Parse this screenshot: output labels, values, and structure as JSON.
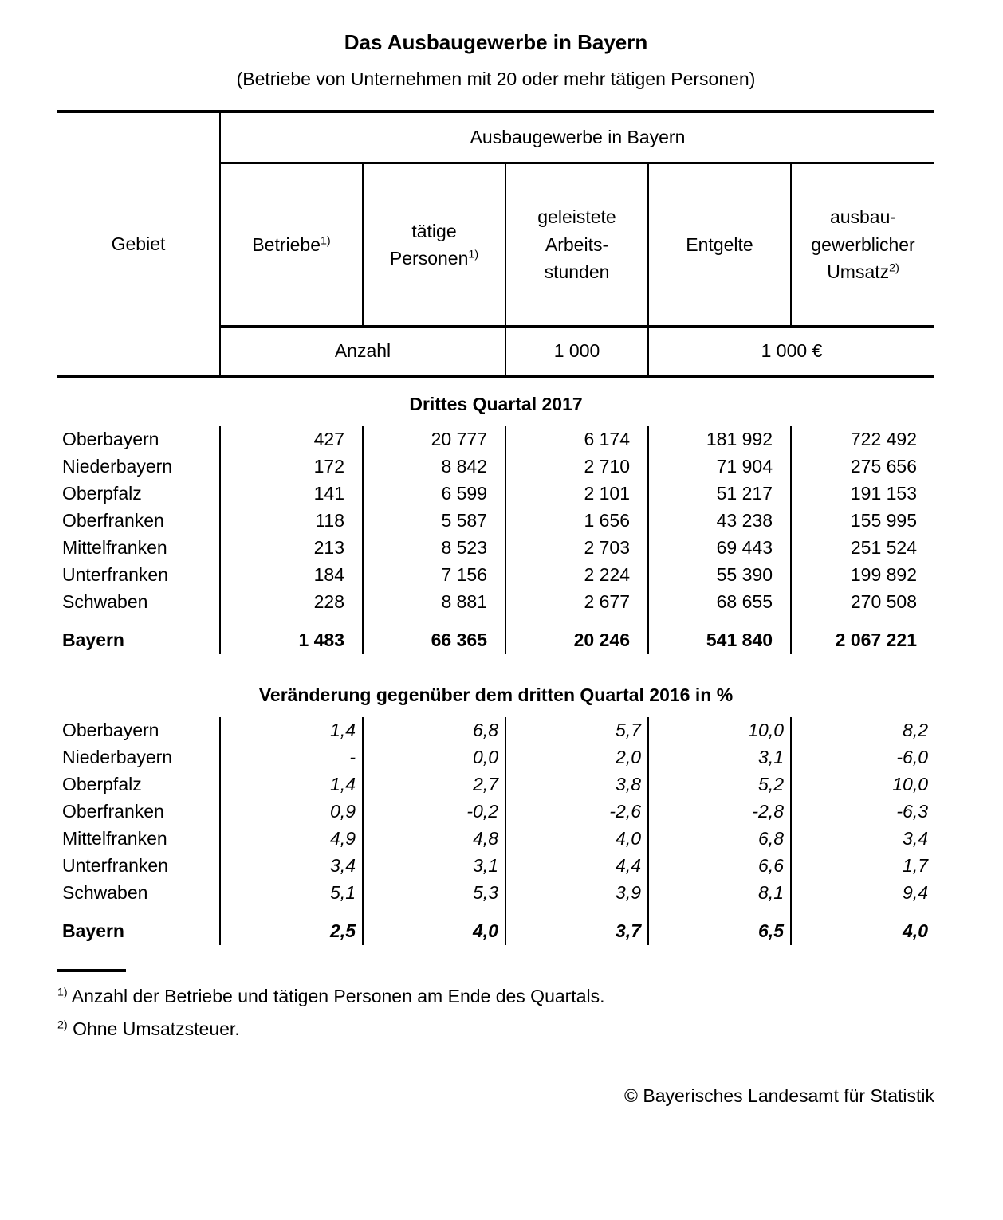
{
  "page": {
    "title": "Das Ausbaugewerbe in Bayern",
    "subtitle": "(Betriebe von Unternehmen mit 20 oder mehr tätigen Personen)",
    "copyright": "© Bayerisches Landesamt für Statistik",
    "text_color": "#000000",
    "background_color": "#ffffff"
  },
  "table_header": {
    "gebiet": "Gebiet",
    "group": "Ausbaugewerbe in Bayern",
    "col1": {
      "l1": "Betriebe",
      "sup": "1)"
    },
    "col2": {
      "l1": "tätige",
      "l2": "Personen",
      "sup": "1)"
    },
    "col3": {
      "l1": "geleistete",
      "l2": "Arbeits-",
      "l3": "stunden"
    },
    "col4": {
      "l1": "Entgelte"
    },
    "col5": {
      "l1": "ausbau-",
      "l2": "gewerblicher",
      "l3": "Umsatz",
      "sup": "2)"
    },
    "units": {
      "u1": "Anzahl",
      "u2": "1 000",
      "u3": "1 000 €"
    }
  },
  "q3_2017": {
    "heading": "Drittes Quartal 2017",
    "rows": [
      {
        "name": "Oberbayern",
        "v0": "427",
        "v1": "20 777",
        "v2": "6 174",
        "v3": "181 992",
        "v4": "722 492"
      },
      {
        "name": "Niederbayern",
        "v0": "172",
        "v1": "8 842",
        "v2": "2 710",
        "v3": "71 904",
        "v4": "275 656"
      },
      {
        "name": "Oberpfalz",
        "v0": "141",
        "v1": "6 599",
        "v2": "2 101",
        "v3": "51 217",
        "v4": "191 153"
      },
      {
        "name": "Oberfranken",
        "v0": "118",
        "v1": "5 587",
        "v2": "1 656",
        "v3": "43 238",
        "v4": "155 995"
      },
      {
        "name": "Mittelfranken",
        "v0": "213",
        "v1": "8 523",
        "v2": "2 703",
        "v3": "69 443",
        "v4": "251 524"
      },
      {
        "name": "Unterfranken",
        "v0": "184",
        "v1": "7 156",
        "v2": "2 224",
        "v3": "55 390",
        "v4": "199 892"
      },
      {
        "name": "Schwaben",
        "v0": "228",
        "v1": "8 881",
        "v2": "2 677",
        "v3": "68 655",
        "v4": "270 508"
      },
      {
        "name": "Bayern",
        "v0": "1 483",
        "v1": "66 365",
        "v2": "20 246",
        "v3": "541 840",
        "v4": "2 067 221",
        "cls": "total"
      }
    ]
  },
  "change_2016": {
    "heading": "Veränderung gegenüber dem dritten Quartal 2016 in %",
    "rows": [
      {
        "name": "Oberbayern",
        "v0": "1,4",
        "v1": "6,8",
        "v2": "5,7",
        "v3": "10,0",
        "v4": "8,2"
      },
      {
        "name": "Niederbayern",
        "v0": "-",
        "v1": "0,0",
        "v2": "2,0",
        "v3": "3,1",
        "v4": "-6,0"
      },
      {
        "name": "Oberpfalz",
        "v0": "1,4",
        "v1": "2,7",
        "v2": "3,8",
        "v3": "5,2",
        "v4": "10,0"
      },
      {
        "name": "Oberfranken",
        "v0": "0,9",
        "v1": "-0,2",
        "v2": "-2,6",
        "v3": "-2,8",
        "v4": "-6,3"
      },
      {
        "name": "Mittelfranken",
        "v0": "4,9",
        "v1": "4,8",
        "v2": "4,0",
        "v3": "6,8",
        "v4": "3,4"
      },
      {
        "name": "Unterfranken",
        "v0": "3,4",
        "v1": "3,1",
        "v2": "4,4",
        "v3": "6,6",
        "v4": "1,7"
      },
      {
        "name": "Schwaben",
        "v0": "5,1",
        "v1": "5,3",
        "v2": "3,9",
        "v3": "8,1",
        "v4": "9,4"
      },
      {
        "name": "Bayern",
        "v0": "2,5",
        "v1": "4,0",
        "v2": "3,7",
        "v3": "6,5",
        "v4": "4,0",
        "cls": "total"
      }
    ]
  },
  "footnotes": [
    {
      "sup": "1)",
      "text": "Anzahl der Betriebe und tätigen Personen am Ende des Quartals."
    },
    {
      "sup": "2)",
      "text": "Ohne Umsatzsteuer."
    }
  ]
}
